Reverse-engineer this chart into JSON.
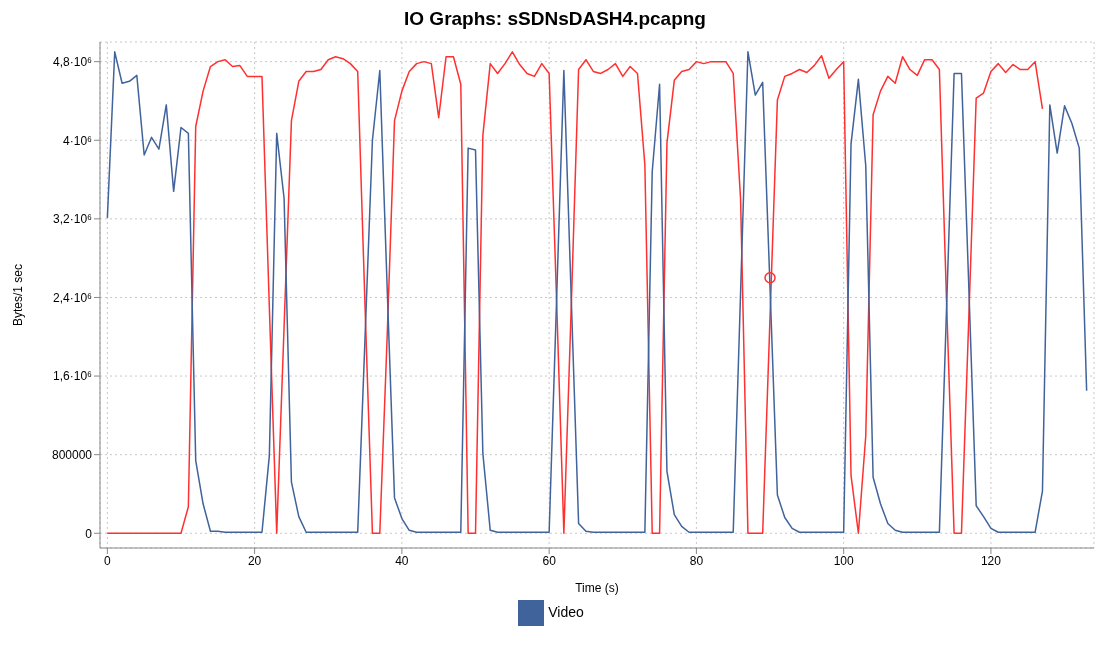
{
  "chart_data": {
    "type": "line",
    "title": "IO Graphs: sSDNsDASH4.pcapng",
    "xlabel": "Time (s)",
    "ylabel": "Bytes/1 sec",
    "x": [
      0,
      1,
      2,
      3,
      4,
      5,
      6,
      7,
      8,
      9,
      10,
      11,
      12,
      13,
      14,
      15,
      16,
      17,
      18,
      19,
      20,
      21,
      22,
      23,
      24,
      25,
      26,
      27,
      28,
      29,
      30,
      31,
      32,
      33,
      34,
      35,
      36,
      37,
      38,
      39,
      40,
      41,
      42,
      43,
      44,
      45,
      46,
      47,
      48,
      49,
      50,
      51,
      52,
      53,
      54,
      55,
      56,
      57,
      58,
      59,
      60,
      61,
      62,
      63,
      64,
      65,
      66,
      67,
      68,
      69,
      70,
      71,
      72,
      73,
      74,
      75,
      76,
      77,
      78,
      79,
      80,
      81,
      82,
      83,
      84,
      85,
      86,
      87,
      88,
      89,
      90,
      91,
      92,
      93,
      94,
      95,
      96,
      97,
      98,
      99,
      100,
      101,
      102,
      103,
      104,
      105,
      106,
      107,
      108,
      109,
      110,
      111,
      112,
      113,
      114,
      115,
      116,
      117,
      118,
      119,
      120,
      121,
      122,
      123,
      124,
      125,
      126,
      127,
      128,
      129,
      130,
      131,
      132,
      133
    ],
    "series": [
      {
        "color": "#ff3030",
        "values": [
          0,
          0,
          0,
          0,
          0,
          0,
          0,
          0,
          0,
          0,
          0,
          270000,
          4140000,
          4500000,
          4750000,
          4800000,
          4820000,
          4750000,
          4760000,
          4650000,
          4650000,
          4650000,
          2300000,
          0,
          2100000,
          4200000,
          4600000,
          4700000,
          4700000,
          4720000,
          4820000,
          4850000,
          4830000,
          4780000,
          4700000,
          2300000,
          0,
          0,
          2000000,
          4200000,
          4500000,
          4700000,
          4780000,
          4800000,
          4780000,
          4230000,
          4850000,
          4850000,
          4570000,
          0,
          0,
          4050000,
          4780000,
          4680000,
          4780000,
          4900000,
          4770000,
          4680000,
          4650000,
          4780000,
          4680000,
          2400000,
          0,
          2300000,
          4720000,
          4820000,
          4700000,
          4680000,
          4720000,
          4780000,
          4650000,
          4750000,
          4680000,
          3750000,
          0,
          0,
          3970000,
          4610000,
          4700000,
          4720000,
          4800000,
          4780000,
          4800000,
          4800000,
          4800000,
          4680000,
          3400000,
          0,
          0,
          0,
          2200000,
          4410000,
          4650000,
          4680000,
          4720000,
          4690000,
          4760000,
          4860000,
          4630000,
          4720000,
          4800000,
          590000,
          0,
          990000,
          4260000,
          4500000,
          4650000,
          4580000,
          4850000,
          4720000,
          4660000,
          4820000,
          4820000,
          4720000,
          2300000,
          0,
          0,
          2200000,
          4430000,
          4480000,
          4700000,
          4780000,
          4690000,
          4770000,
          4720000,
          4720000,
          4800000,
          4320000,
          null,
          null,
          null,
          null,
          null,
          null
        ]
      },
      {
        "name": "Video",
        "color": "#41639b",
        "values": [
          3210000,
          4900000,
          4580000,
          4600000,
          4660000,
          3850000,
          4030000,
          3910000,
          4360000,
          3480000,
          4130000,
          4070000,
          740000,
          300000,
          20000,
          20000,
          10000,
          10000,
          10000,
          10000,
          10000,
          10000,
          790000,
          4070000,
          3410000,
          520000,
          170000,
          10000,
          10000,
          10000,
          10000,
          10000,
          10000,
          10000,
          10000,
          2000000,
          4000000,
          4710000,
          2500000,
          360000,
          150000,
          30000,
          10000,
          10000,
          10000,
          10000,
          10000,
          10000,
          10000,
          3920000,
          3900000,
          810000,
          30000,
          10000,
          10000,
          10000,
          10000,
          10000,
          10000,
          10000,
          10000,
          2350000,
          4710000,
          2400000,
          100000,
          20000,
          10000,
          10000,
          10000,
          10000,
          10000,
          10000,
          10000,
          10000,
          3680000,
          4570000,
          630000,
          190000,
          70000,
          10000,
          10000,
          10000,
          10000,
          10000,
          10000,
          10000,
          2450000,
          4900000,
          4460000,
          4590000,
          2500000,
          390000,
          160000,
          50000,
          10000,
          10000,
          10000,
          10000,
          10000,
          10000,
          10000,
          3960000,
          4620000,
          3740000,
          570000,
          300000,
          100000,
          30000,
          10000,
          10000,
          10000,
          10000,
          10000,
          10000,
          2350000,
          4680000,
          4680000,
          2500000,
          280000,
          170000,
          50000,
          10000,
          10000,
          10000,
          10000,
          10000,
          10000,
          430000,
          4360000,
          3870000,
          4350000,
          4170000,
          3920000,
          1450000
        ]
      },
      {
        "type": "scatter",
        "color": "#ff3030",
        "marker": "circle",
        "x": [
          90
        ],
        "values": [
          2600000
        ]
      }
    ],
    "xlim": [
      -1,
      134
    ],
    "xticks": [
      0,
      20,
      40,
      60,
      80,
      100,
      120
    ],
    "ylim": [
      -150000,
      5000000
    ],
    "yticks": [
      0,
      800000,
      {
        "value": 1600000,
        "label": "1,6·10⁶"
      },
      {
        "value": 2400000,
        "label": "2,4·10⁶"
      },
      {
        "value": 3200000,
        "label": "3,2·10⁶"
      },
      {
        "value": 4000000,
        "label": "4·10⁶"
      },
      {
        "value": 4800000,
        "label": "4,8·10⁶"
      }
    ],
    "grid": true,
    "legend": "bottom"
  }
}
